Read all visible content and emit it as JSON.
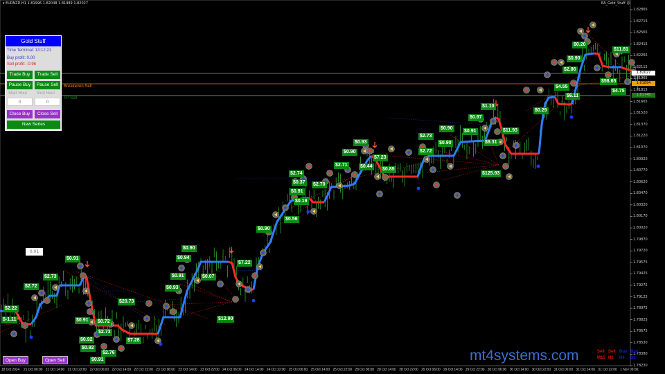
{
  "header": {
    "symbol_info": "▾ EURNZD,H1  1.81996 1.82048 1.81989 1.82027",
    "ea_name": "EA_Gold_Stuff ☺"
  },
  "price_axis": [
    "1.82865",
    "1.82715",
    "1.82565",
    "1.82415",
    "1.82265",
    "1.82115",
    "1.81965",
    "1.81815",
    "1.81665",
    "1.81520",
    "1.81370",
    "1.81220",
    "1.81070",
    "1.80920",
    "1.80770",
    "1.80620",
    "1.80470",
    "1.80320",
    "1.80170",
    "1.80020",
    "1.79870",
    "1.79720",
    "1.79575",
    "1.79425",
    "1.79275",
    "1.79125",
    "1.78975",
    "1.78825",
    "1.78675",
    "1.78530",
    "1.78380",
    "1.78230"
  ],
  "price_badges": {
    "current": "1.82027",
    "breakeven": "1.81894",
    "tp": "1.81748"
  },
  "time_axis": [
    "18 Oct 2024",
    "21 Oct 06:00",
    "21 Oct 14:00",
    "21 Oct 22:00",
    "22 Oct 06:00",
    "22 Oct 14:00",
    "22 Oct 22:00",
    "23 Oct 06:00",
    "23 Oct 14:00",
    "23 Oct 22:00",
    "24 Oct 06:00",
    "24 Oct 14:00",
    "24 Oct 22:00",
    "25 Oct 06:00",
    "25 Oct 14:00",
    "25 Oct 22:00",
    "28 Oct 06:00",
    "28 Oct 14:00",
    "28 Oct 22:00",
    "29 Oct 06:00",
    "29 Oct 14:00",
    "29 Oct 22:00",
    "30 Oct 06:00",
    "30 Oct 14:00",
    "30 Oct 22:00",
    "31 Oct 06:00",
    "31 Oct 14:00",
    "31 Oct 22:00",
    "1 Nov 06:00"
  ],
  "chart_lines": {
    "breakeven_label": "Breakeven Sell",
    "tp_label": "TP Sell"
  },
  "panel": {
    "title": "Gold Stuff",
    "time_terminal": "Time Terminal: 13:12:21",
    "buy_profit": "Buy profit: 0.00",
    "sell_profit": "Sell profit: -0.96",
    "trade_buy": "Trade Buy",
    "trade_sell": "Trade Sell",
    "pause_buy": "Pause Buy",
    "pause_sell": "Pause Sell",
    "start_hour_label": "Start Hour",
    "end_hour_label": "End Hour",
    "start_hour": "0",
    "end_hour": "0",
    "close_buy": "Close Buy",
    "close_sell": "Close Sell",
    "new_series": "New Series"
  },
  "lot_size": "0.01",
  "open_buy": "Open Buy",
  "open_sell": "Open Sell",
  "brand": "mt4systems.com",
  "timeframes": [
    {
      "signal": "Sell",
      "tf": "M15",
      "color": "#e01010"
    },
    {
      "signal": "Sell",
      "tf": "H1",
      "color": "#e01010"
    },
    {
      "signal": "Buy",
      "tf": "H4",
      "color": "#1020e0"
    },
    {
      "signal": "Buy",
      "tf": "D1",
      "color": "#1020e0"
    }
  ],
  "profit_labels": [
    "$2.22",
    "$-1.11",
    "$2.72",
    "$2.73",
    "$0.91",
    "$20.73",
    "$0.91",
    "$0.72",
    "$2.73",
    "$0.92",
    "$0.92",
    "$7.28",
    "$2.76",
    "$0.91",
    "$0.90",
    "$0.94",
    "$0.91",
    "$0.93",
    "$0.07",
    "$7.22",
    "$12.90",
    "$0.90",
    "$0.56",
    "$0.19",
    "$0.91",
    "$0.37",
    "$2.74",
    "$2.70",
    "$2.71",
    "$0.90",
    "$0.93",
    "$0.44",
    "$7.23",
    "$0.85",
    "$2.73",
    "$0.90",
    "$2.72",
    "$0.90",
    "$0.91",
    "$0.97",
    "$1.10",
    "$9.31",
    "$11.93",
    "$125.93",
    "$0.29",
    "$0.20",
    "$0.90",
    "$2.86",
    "$4.55",
    "$6.11",
    "$58.65",
    "$4.75",
    "$11.81"
  ],
  "colors": {
    "background": "#000000",
    "uptrend": "#2f7dff",
    "downtrend": "#ff2a2a",
    "candles": "#2fa82f",
    "label_bg": "#0a8a12",
    "panel_title": "#0000ff"
  }
}
